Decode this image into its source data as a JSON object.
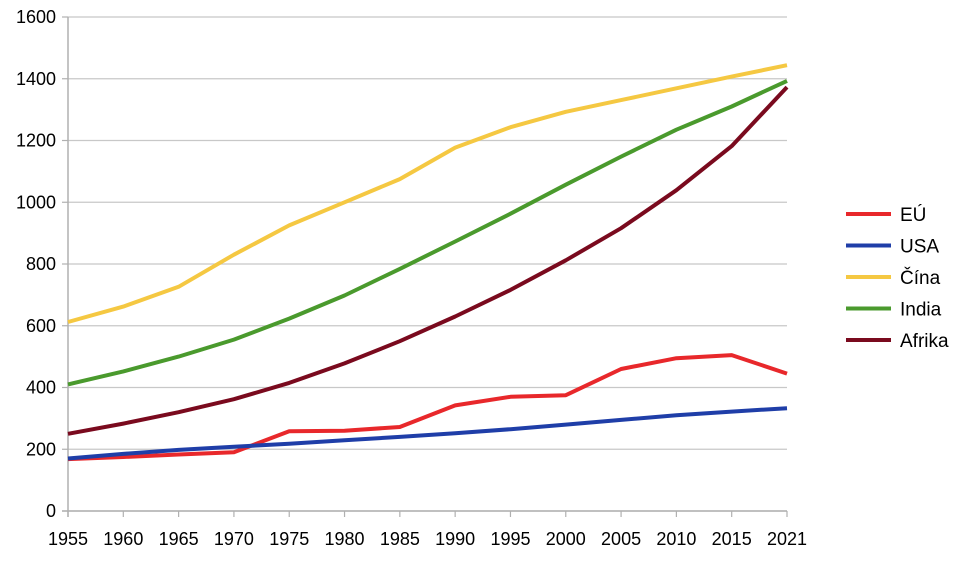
{
  "chart_data": {
    "type": "line",
    "title": "",
    "xlabel": "",
    "ylabel": "",
    "categories": [
      "1955",
      "1960",
      "1965",
      "1970",
      "1975",
      "1980",
      "1985",
      "1990",
      "1995",
      "2000",
      "2005",
      "2010",
      "2015",
      "2021"
    ],
    "y_ticks": [
      "0",
      "200",
      "400",
      "600",
      "800",
      "1000",
      "1200",
      "1400",
      "1600"
    ],
    "ylim": [
      0,
      1600
    ],
    "grid": "horizontal",
    "legend_position": "right",
    "series": [
      {
        "name": "EÚ",
        "color": "#e8282b",
        "values": [
          168,
          175,
          183,
          190,
          258,
          260,
          272,
          342,
          370,
          375,
          460,
          495,
          505,
          445
        ]
      },
      {
        "name": "USA",
        "color": "#1f3ea8",
        "values": [
          170,
          185,
          198,
          208,
          218,
          229,
          240,
          252,
          265,
          280,
          295,
          310,
          322,
          333
        ]
      },
      {
        "name": "Čína",
        "color": "#f5c842",
        "values": [
          612,
          662,
          726,
          830,
          925,
          1000,
          1075,
          1177,
          1243,
          1293,
          1331,
          1369,
          1407,
          1444
        ]
      },
      {
        "name": "India",
        "color": "#4a9a2d",
        "values": [
          410,
          452,
          500,
          555,
          623,
          698,
          784,
          873,
          963,
          1057,
          1148,
          1235,
          1310,
          1393
        ]
      },
      {
        "name": "Afrika",
        "color": "#7a0a1e",
        "values": [
          250,
          283,
          320,
          362,
          415,
          478,
          550,
          630,
          716,
          812,
          916,
          1039,
          1182,
          1373
        ]
      }
    ]
  }
}
